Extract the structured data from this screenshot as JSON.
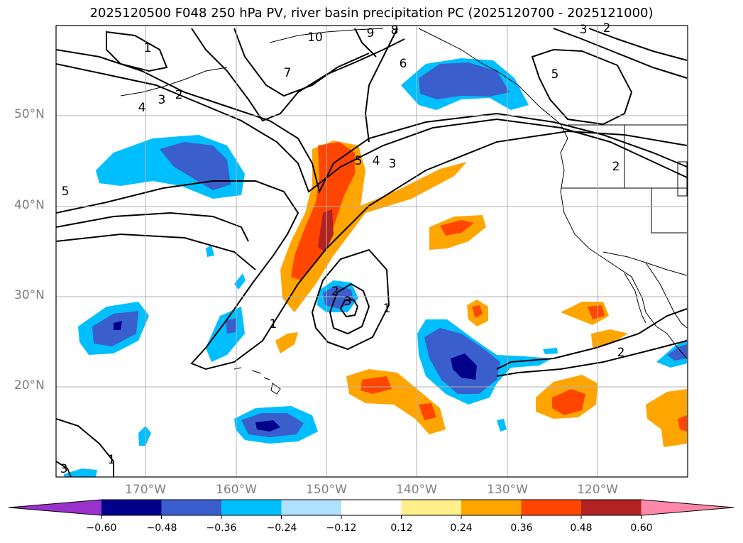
{
  "title": "2025120500 F048 250 hPa PV, river basin precipitation PC (2025120700 - 2025121000)",
  "lat_labels": [
    "50°N",
    "40°N",
    "30°N",
    "20°N"
  ],
  "lon_labels": [
    "170°W",
    "160°W",
    "150°W",
    "140°W",
    "130°W",
    "120°W"
  ],
  "colorbar": {
    "ticks": [
      "−0.60",
      "−0.48",
      "−0.36",
      "−0.24",
      "−0.12",
      "0.12",
      "0.24",
      "0.36",
      "0.48",
      "0.60"
    ],
    "colors": [
      "#9932cc",
      "#00008b",
      "#3a5fcd",
      "#00bfff",
      "#b0e2ff",
      "#ffffff",
      "#fff08c",
      "#ffa500",
      "#ff4500",
      "#b22222",
      "#ff88aa"
    ]
  },
  "pv_contour_labels": [
    "1",
    "1",
    "1",
    "1",
    "2",
    "2",
    "2",
    "2",
    "2",
    "3",
    "3",
    "3",
    "3",
    "3",
    "4",
    "4",
    "5",
    "5",
    "5",
    "6",
    "7",
    "8",
    "9",
    "10"
  ]
}
